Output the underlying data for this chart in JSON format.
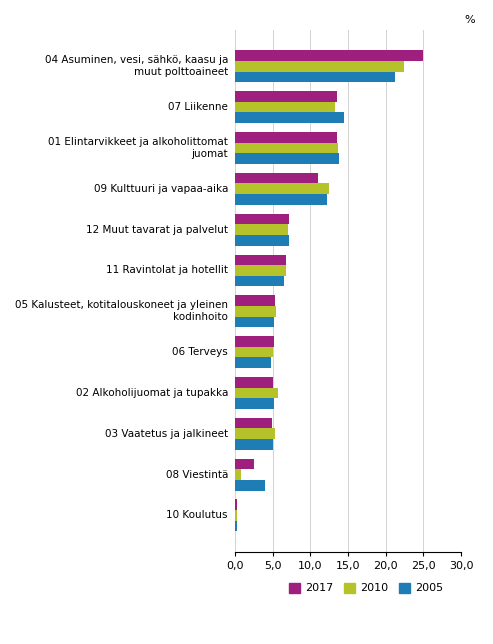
{
  "categories": [
    "04 Asuminen, vesi, sähkö, kaasu ja\nmuut polttoaineet",
    "07 Liikenne",
    "01 Elintarvikkeet ja alkoholittomat\njuomat",
    "09 Kulttuuri ja vapaa-aika",
    "12 Muut tavarat ja palvelut",
    "11 Ravintolat ja hotellit",
    "05 Kalusteet, kotitalouskoneet ja yleinen\nkodinhoito",
    "06 Terveys",
    "02 Alkoholijuomat ja tupakka",
    "03 Vaatetus ja jalkineet",
    "08 Viestintä",
    "10 Koulutus"
  ],
  "values_2017": [
    25.0,
    13.5,
    13.5,
    11.0,
    7.2,
    6.8,
    5.3,
    5.2,
    5.0,
    4.9,
    2.5,
    0.3
  ],
  "values_2010": [
    22.5,
    13.3,
    13.7,
    12.5,
    7.0,
    6.8,
    5.5,
    5.0,
    5.7,
    5.3,
    0.8,
    0.3
  ],
  "values_2005": [
    21.2,
    14.5,
    13.8,
    12.2,
    7.2,
    6.5,
    5.2,
    4.8,
    5.2,
    5.1,
    4.0,
    0.3
  ],
  "color_2017": "#9e1f7d",
  "color_2010": "#b5c229",
  "color_2005": "#1f7db5",
  "xlim": [
    0,
    30
  ],
  "xticks": [
    0,
    5,
    10,
    15,
    20,
    25,
    30
  ],
  "xtick_labels": [
    "0,0",
    "5,0",
    "10,0",
    "15,0",
    "20,0",
    "25,0",
    "30,0"
  ],
  "bar_height": 0.26,
  "figsize": [
    4.93,
    6.44
  ],
  "dpi": 100
}
